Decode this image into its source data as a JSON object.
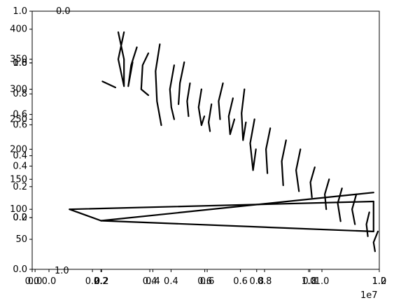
{
  "chart_data": {
    "type": "line",
    "title": "",
    "xlabel": "",
    "ylabel": "",
    "x_offset_label": "1e7",
    "grid": false,
    "legend": "none",
    "line_color": "#000000",
    "axes": {
      "primary": {
        "xlim": [
          -100000,
          12000000
        ],
        "ylim": [
          0,
          430
        ],
        "xticks": [
          "0.0",
          "0.2",
          "0.4",
          "0.6",
          "0.8",
          "1.0",
          "1.2"
        ],
        "xtick_values": [
          0,
          2000000,
          4000000,
          6000000,
          8000000,
          10000000,
          12000000
        ],
        "yticks": [
          "50",
          "100",
          "150",
          "200",
          "250",
          "300",
          "350",
          "400"
        ],
        "ytick_values": [
          50,
          100,
          150,
          200,
          250,
          300,
          350,
          400
        ]
      },
      "overlay_a": {
        "xticks": [
          "0.0",
          "0.2",
          "0.4",
          "0.6",
          "0.8",
          "1.0"
        ],
        "yticks": [
          "0.0",
          "0.2",
          "0.4",
          "0.6",
          "0.8",
          "1.0"
        ]
      },
      "overlay_b": {
        "xticks": [
          "0.0",
          "0.2",
          "0.4",
          "0.6",
          "0.8",
          "1.0"
        ],
        "yticks": [
          "0.0",
          "0.2",
          "0.4",
          "0.6",
          "0.8",
          "1.0"
        ],
        "top_label": "0.0",
        "bottom_label": "1.0"
      }
    },
    "series": [
      {
        "x": [
          1200000,
          2300000
        ],
        "y": [
          100,
          81
        ]
      },
      {
        "x": [
          1200000,
          11800000
        ],
        "y": [
          100,
          113
        ]
      },
      {
        "x": [
          2300000,
          11800000
        ],
        "y": [
          81,
          63
        ]
      },
      {
        "x": [
          2300000,
          11800000
        ],
        "y": [
          81,
          128
        ]
      },
      {
        "x": [
          11800000,
          11800000
        ],
        "y": [
          113,
          63
        ]
      },
      {
        "x": [
          2350000,
          2800000
        ],
        "y": [
          313,
          303
        ]
      },
      {
        "x": [
          3100000,
          2900000,
          3100000,
          3100000,
          2900000
        ],
        "y": [
          395,
          350,
          305,
          350,
          395
        ]
      },
      {
        "x": [
          3550000,
          3350000,
          3250000,
          3400000
        ],
        "y": [
          370,
          340,
          305,
          345
        ]
      },
      {
        "x": [
          3950000,
          3750000,
          3700000,
          3950000
        ],
        "y": [
          360,
          340,
          300,
          290
        ]
      },
      {
        "x": [
          4350000,
          4200000,
          4250000,
          4400000
        ],
        "y": [
          375,
          330,
          280,
          240
        ]
      },
      {
        "x": [
          4850000,
          4700000,
          4750000,
          4850000
        ],
        "y": [
          340,
          300,
          270,
          250
        ]
      },
      {
        "x": [
          5200000,
          5050000,
          5000000
        ],
        "y": [
          345,
          310,
          275
        ]
      },
      {
        "x": [
          5400000,
          5300000,
          5350000
        ],
        "y": [
          310,
          280,
          255
        ]
      },
      {
        "x": [
          5800000,
          5700000,
          5800000,
          5900000
        ],
        "y": [
          300,
          270,
          240,
          255
        ]
      },
      {
        "x": [
          6150000,
          6050000,
          6100000
        ],
        "y": [
          275,
          245,
          230
        ]
      },
      {
        "x": [
          6550000,
          6400000,
          6450000
        ],
        "y": [
          310,
          280,
          250
        ]
      },
      {
        "x": [
          6900000,
          6750000,
          6800000,
          6950000
        ],
        "y": [
          285,
          255,
          225,
          250
        ]
      },
      {
        "x": [
          7300000,
          7200000,
          7250000,
          7350000
        ],
        "y": [
          300,
          260,
          215,
          245
        ]
      },
      {
        "x": [
          7650000,
          7500000,
          7600000,
          7700000
        ],
        "y": [
          250,
          210,
          165,
          200
        ]
      },
      {
        "x": [
          8200000,
          8050000,
          8100000
        ],
        "y": [
          235,
          200,
          160
        ]
      },
      {
        "x": [
          8750000,
          8600000,
          8650000
        ],
        "y": [
          215,
          180,
          140
        ]
      },
      {
        "x": [
          9250000,
          9100000,
          9200000
        ],
        "y": [
          200,
          165,
          130
        ]
      },
      {
        "x": [
          9750000,
          9600000,
          9650000
        ],
        "y": [
          170,
          145,
          120
        ]
      },
      {
        "x": [
          10250000,
          10100000,
          10150000
        ],
        "y": [
          150,
          125,
          100
        ]
      },
      {
        "x": [
          10700000,
          10550000,
          10650000
        ],
        "y": [
          135,
          110,
          80
        ]
      },
      {
        "x": [
          11200000,
          11050000,
          11150000
        ],
        "y": [
          125,
          100,
          75
        ]
      },
      {
        "x": [
          11650000,
          11550000,
          11600000
        ],
        "y": [
          95,
          75,
          55
        ]
      },
      {
        "x": [
          11950000,
          11800000,
          11850000
        ],
        "y": [
          63,
          45,
          30
        ]
      }
    ]
  }
}
